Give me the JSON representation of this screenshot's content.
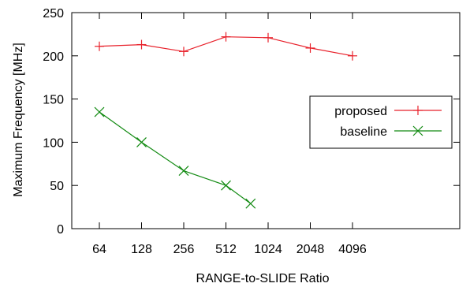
{
  "chart_data": {
    "type": "line",
    "xlabel": "RANGE-to-SLIDE Ratio",
    "ylabel": "Maximum Frequency [MHz]",
    "x_scale": "log2",
    "categories": [
      "64",
      "128",
      "256",
      "512",
      "1024",
      "2048",
      "4096"
    ],
    "ylim": [
      0,
      250
    ],
    "yticks": [
      0,
      50,
      100,
      150,
      200,
      250
    ],
    "grid": false,
    "legend": "right",
    "series": [
      {
        "name": "proposed",
        "color": "#e8202a",
        "marker": "plus",
        "x": [
          64,
          128,
          256,
          512,
          1024,
          2048,
          4096
        ],
        "y": [
          211,
          213,
          205,
          222,
          221,
          209,
          200
        ]
      },
      {
        "name": "baseline",
        "color": "#128a12",
        "marker": "cross",
        "x": [
          64,
          128,
          256,
          512,
          768
        ],
        "y": [
          135,
          100,
          67,
          50,
          29
        ]
      }
    ]
  }
}
